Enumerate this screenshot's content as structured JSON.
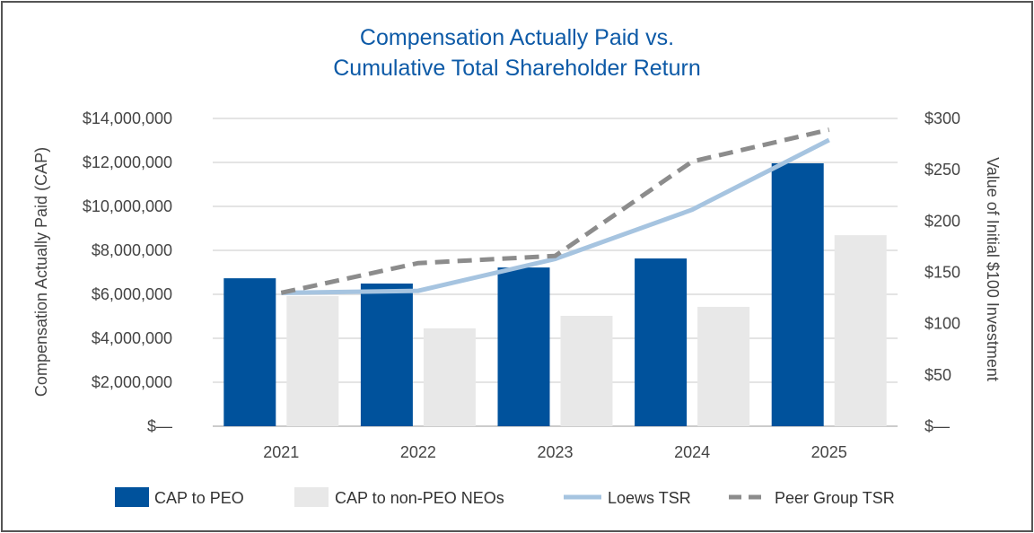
{
  "chart_data": {
    "type": "bar",
    "title": [
      "Compensation Actually Paid vs.",
      "Cumulative Total Shareholder Return"
    ],
    "categories": [
      "2021",
      "2022",
      "2023",
      "2024",
      "2025"
    ],
    "ylabel": "Compensation Actually Paid (CAP)",
    "y2label": "Value of Initial $100 Investment",
    "ylim": [
      0,
      14000000
    ],
    "y2lim": [
      0,
      300
    ],
    "yticks": [
      "$—",
      "$2,000,000",
      "$4,000,000",
      "$6,000,000",
      "$8,000,000",
      "$10,000,000",
      "$12,000,000",
      "$14,000,000"
    ],
    "y2ticks": [
      "$—",
      "$50",
      "$100",
      "$150",
      "$200",
      "$250",
      "$300"
    ],
    "grid": true,
    "legend_position": "bottom",
    "bar_series": [
      {
        "name": "CAP to PEO",
        "color": "#00529c",
        "values": [
          6730000,
          6490000,
          7220000,
          7630000,
          11960000
        ]
      },
      {
        "name": "CAP to non-PEO NEOs",
        "color": "#e8e8e8",
        "values": [
          5920000,
          4450000,
          5020000,
          5430000,
          8690000
        ]
      }
    ],
    "line_series": [
      {
        "name": "Loews TSR",
        "color": "#a6c4e0",
        "style": "solid",
        "values": [
          130,
          132,
          163,
          211,
          279
        ]
      },
      {
        "name": "Peer Group TSR",
        "color": "#8c8c8c",
        "style": "dashed",
        "values": [
          130,
          159,
          166,
          258,
          289
        ]
      }
    ]
  }
}
